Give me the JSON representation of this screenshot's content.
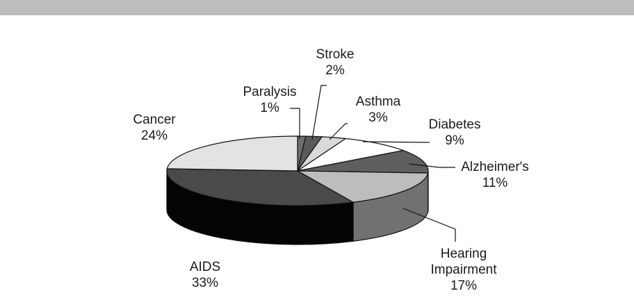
{
  "chart_data": {
    "type": "pie",
    "style": "3d-exploded-none",
    "title": "",
    "slices": [
      {
        "name": "Paralysis",
        "value": 1,
        "label": "1%",
        "color": "#6e6e6e"
      },
      {
        "name": "Stroke",
        "value": 2,
        "label": "2%",
        "color": "#5a5a5a"
      },
      {
        "name": "Asthma",
        "value": 3,
        "label": "3%",
        "color": "#d9d9d9"
      },
      {
        "name": "Diabetes",
        "value": 9,
        "label": "9%",
        "color": "#ffffff"
      },
      {
        "name": "Alzheimer's",
        "value": 11,
        "label": "11%",
        "color": "#5f5f5f"
      },
      {
        "name": "Hearing Impairment",
        "value": 17,
        "label": "17%",
        "color": "#bdbdbd"
      },
      {
        "name": "AIDS",
        "value": 33,
        "label": "33%",
        "color": "#4a4a4a"
      },
      {
        "name": "Cancer",
        "value": 24,
        "label": "24%",
        "color": "#e3e3e3"
      }
    ]
  }
}
